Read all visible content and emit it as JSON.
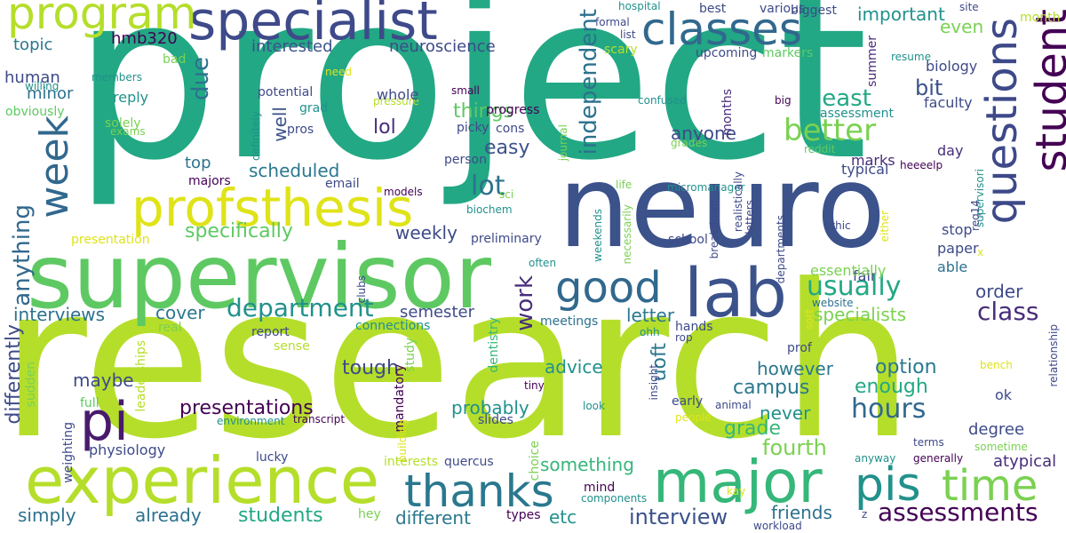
{
  "words": [
    {
      "text": "project",
      "color": "#22a884"
    },
    {
      "text": "research",
      "color": "#b5de2b"
    },
    {
      "text": "neuro",
      "color": "#3b528b"
    },
    {
      "text": "supervisor",
      "color": "#5ec962"
    },
    {
      "text": "experience",
      "color": "#b5de2b"
    },
    {
      "text": "profsthesis",
      "color": "#dfe318"
    },
    {
      "text": "specialist",
      "color": "#3e4a89"
    },
    {
      "text": "program",
      "color": "#b5de2b"
    },
    {
      "text": "classes",
      "color": "#31688e"
    },
    {
      "text": "student",
      "color": "#440154"
    },
    {
      "text": "questions",
      "color": "#3e4989"
    },
    {
      "text": "major",
      "color": "#35b779"
    },
    {
      "text": "lab",
      "color": "#3b528b"
    },
    {
      "text": "good",
      "color": "#31688e"
    },
    {
      "text": "thanks",
      "color": "#2a788e"
    },
    {
      "text": "pis",
      "color": "#21918c"
    },
    {
      "text": "time",
      "color": "#7ad151"
    },
    {
      "text": "pi",
      "color": "#481a6c"
    },
    {
      "text": "week",
      "color": "#31688e"
    },
    {
      "text": "department",
      "color": "#21918c"
    },
    {
      "text": "better",
      "color": "#7ad151"
    },
    {
      "text": "independent",
      "color": "#2c728e"
    },
    {
      "text": "lot",
      "color": "#2c728e"
    },
    {
      "text": "work",
      "color": "#472d7b"
    },
    {
      "text": "usually",
      "color": "#22a884"
    },
    {
      "text": "assessments",
      "color": "#440154"
    },
    {
      "text": "hours",
      "color": "#31688e"
    },
    {
      "text": "class",
      "color": "#472d7b"
    },
    {
      "text": "anything",
      "color": "#31688e"
    },
    {
      "text": "due",
      "color": "#2c728e"
    },
    {
      "text": "well",
      "color": "#3b528b"
    },
    {
      "text": "least",
      "color": "#22a884"
    },
    {
      "text": "interview",
      "color": "#3b528b"
    },
    {
      "text": "fourth",
      "color": "#7ad151"
    },
    {
      "text": "specifically",
      "color": "#5ec962"
    },
    {
      "text": "presentations",
      "color": "#440154"
    },
    {
      "text": "differently",
      "color": "#3e4a89"
    },
    {
      "text": "students",
      "color": "#22a884"
    },
    {
      "text": "interviews",
      "color": "#2c728e"
    },
    {
      "text": "simply",
      "color": "#2c728e"
    },
    {
      "text": "already",
      "color": "#2c728e"
    },
    {
      "text": "different",
      "color": "#2a788e"
    },
    {
      "text": "campus",
      "color": "#2a788e"
    },
    {
      "text": "probably",
      "color": "#21918c"
    },
    {
      "text": "advice",
      "color": "#21918c"
    },
    {
      "text": "something",
      "color": "#35b779"
    },
    {
      "text": "tough",
      "color": "#3e4a89"
    },
    {
      "text": "option",
      "color": "#2a788e"
    },
    {
      "text": "enough",
      "color": "#22a884"
    },
    {
      "text": "specialists",
      "color": "#7ad151"
    },
    {
      "text": "important",
      "color": "#21918c"
    },
    {
      "text": "even",
      "color": "#7ad151"
    },
    {
      "text": "anyone",
      "color": "#3e4a89"
    },
    {
      "text": "easy",
      "color": "#3b528b"
    },
    {
      "text": "things",
      "color": "#5ec962"
    },
    {
      "text": "lol",
      "color": "#472d7b"
    },
    {
      "text": "scheduled",
      "color": "#2a788e"
    },
    {
      "text": "top",
      "color": "#2c728e"
    },
    {
      "text": "cover",
      "color": "#2a788e"
    },
    {
      "text": "weekly",
      "color": "#3e4a89"
    },
    {
      "text": "semester",
      "color": "#3e4a89"
    },
    {
      "text": "maybe",
      "color": "#3e4a89"
    },
    {
      "text": "never",
      "color": "#21918c"
    },
    {
      "text": "however",
      "color": "#2a788e"
    },
    {
      "text": "grade",
      "color": "#35b779"
    },
    {
      "text": "friends",
      "color": "#2c728e"
    },
    {
      "text": "uoft",
      "color": "#2a788e"
    },
    {
      "text": "etc",
      "color": "#21918c"
    },
    {
      "text": "bit",
      "color": "#3b528b"
    },
    {
      "text": "order",
      "color": "#3e4a89"
    },
    {
      "text": "letter",
      "color": "#2a788e"
    },
    {
      "text": "interested",
      "color": "#3b528b"
    },
    {
      "text": "neuroscience",
      "color": "#3e4a89"
    },
    {
      "text": "hmb320",
      "color": "#440154"
    },
    {
      "text": "topic",
      "color": "#2a788e"
    },
    {
      "text": "human",
      "color": "#3e4a89"
    },
    {
      "text": "minor",
      "color": "#2c728e"
    },
    {
      "text": "physiology",
      "color": "#3e4a89"
    },
    {
      "text": "degree",
      "color": "#3e4a89"
    },
    {
      "text": "ok",
      "color": "#3e4a89"
    },
    {
      "text": "atypical",
      "color": "#472d7b"
    },
    {
      "text": "fair",
      "color": "#3e4a89"
    },
    {
      "text": "essentially",
      "color": "#7ad151"
    },
    {
      "text": "paper",
      "color": "#3e4a89"
    },
    {
      "text": "able",
      "color": "#2c728e"
    },
    {
      "text": "stop",
      "color": "#3e4a89"
    },
    {
      "text": "marks",
      "color": "#472d7b"
    },
    {
      "text": "typical",
      "color": "#3e4a89"
    },
    {
      "text": "day",
      "color": "#472d7b"
    },
    {
      "text": "faculty",
      "color": "#3e4a89"
    },
    {
      "text": "biology",
      "color": "#3e4a89"
    },
    {
      "text": "month",
      "color": "#b5de2b"
    },
    {
      "text": "site",
      "color": "#3e4a89"
    },
    {
      "text": "biggest",
      "color": "#3e4a89"
    },
    {
      "text": "various",
      "color": "#3e4a89"
    },
    {
      "text": "best",
      "color": "#3e4a89"
    },
    {
      "text": "hospital",
      "color": "#21918c"
    },
    {
      "text": "formal",
      "color": "#3e4a89"
    },
    {
      "text": "list",
      "color": "#3e4a89"
    },
    {
      "text": "scary",
      "color": "#b5de2b"
    },
    {
      "text": "upcoming",
      "color": "#3e4a89"
    },
    {
      "text": "markers",
      "color": "#5ec962"
    },
    {
      "text": "summer",
      "color": "#472d7b"
    },
    {
      "text": "resume",
      "color": "#21918c"
    },
    {
      "text": "assessment",
      "color": "#21918c"
    },
    {
      "text": "months",
      "color": "#472d7b"
    },
    {
      "text": "big",
      "color": "#440154"
    },
    {
      "text": "prof",
      "color": "#3e4a89"
    },
    {
      "text": "report",
      "color": "#3e4a89"
    },
    {
      "text": "connections",
      "color": "#21918c"
    },
    {
      "text": "mandatory",
      "color": "#440154"
    },
    {
      "text": "study",
      "color": "#7ad151"
    },
    {
      "text": "dentistry",
      "color": "#35b779"
    },
    {
      "text": "meetings",
      "color": "#2c728e"
    },
    {
      "text": "hands",
      "color": "#3e4a89"
    },
    {
      "text": "school",
      "color": "#3e4a89"
    },
    {
      "text": "ethic",
      "color": "#3e4a89"
    },
    {
      "text": "website",
      "color": "#2c728e"
    },
    {
      "text": "reddit",
      "color": "#5ec962"
    },
    {
      "text": "heeeelp",
      "color": "#440154"
    },
    {
      "text": "grades",
      "color": "#7ad151"
    },
    {
      "text": "micromanager",
      "color": "#21918c"
    },
    {
      "text": "req14",
      "color": "#3e4a89"
    },
    {
      "text": "supervisori",
      "color": "#21918c"
    },
    {
      "text": "relationship",
      "color": "#3e4a89"
    },
    {
      "text": "bench",
      "color": "#dfe318"
    },
    {
      "text": "sometime",
      "color": "#7ad151"
    },
    {
      "text": "terms",
      "color": "#3e4a89"
    },
    {
      "text": "generally",
      "color": "#440154"
    },
    {
      "text": "anyway",
      "color": "#21918c"
    },
    {
      "text": "kay",
      "color": "#dfe318"
    },
    {
      "text": "workload",
      "color": "#3e4a89"
    },
    {
      "text": "z",
      "color": "#3e4a89"
    },
    {
      "text": "people",
      "color": "#dfe318"
    },
    {
      "text": "animal",
      "color": "#3e4a89"
    },
    {
      "text": "early",
      "color": "#3e4a89"
    },
    {
      "text": "insight",
      "color": "#3e4a89"
    },
    {
      "text": "ohh",
      "color": "#21918c"
    },
    {
      "text": "rop",
      "color": "#3e4a89"
    },
    {
      "text": "real",
      "color": "#7ad151"
    },
    {
      "text": "sense",
      "color": "#b5de2b"
    },
    {
      "text": "leaderships",
      "color": "#b5de2b"
    },
    {
      "text": "sudden",
      "color": "#7ad151"
    },
    {
      "text": "full",
      "color": "#5ec962"
    },
    {
      "text": "weighting",
      "color": "#3e4a89"
    },
    {
      "text": "lucky",
      "color": "#3e4a89"
    },
    {
      "text": "environment",
      "color": "#21918c"
    },
    {
      "text": "transcript",
      "color": "#440154"
    },
    {
      "text": "building",
      "color": "#dfe318"
    },
    {
      "text": "interests",
      "color": "#b5de2b"
    },
    {
      "text": "quercus",
      "color": "#3e4a89"
    },
    {
      "text": "choice",
      "color": "#7ad151"
    },
    {
      "text": "tiny",
      "color": "#440154"
    },
    {
      "text": "look",
      "color": "#21918c"
    },
    {
      "text": "slides",
      "color": "#3e4a89"
    },
    {
      "text": "mind",
      "color": "#440154"
    },
    {
      "text": "components",
      "color": "#21918c"
    },
    {
      "text": "types",
      "color": "#440154"
    },
    {
      "text": "hey",
      "color": "#7ad151"
    },
    {
      "text": "presentation",
      "color": "#dfe318"
    },
    {
      "text": "majors",
      "color": "#440154"
    },
    {
      "text": "email",
      "color": "#3e4a89"
    },
    {
      "text": "biochem",
      "color": "#21918c"
    },
    {
      "text": "sci",
      "color": "#7ad151"
    },
    {
      "text": "person",
      "color": "#3e4a89"
    },
    {
      "text": "models",
      "color": "#440154"
    },
    {
      "text": "journal",
      "color": "#7ad151"
    },
    {
      "text": "pressure",
      "color": "#b5de2b"
    },
    {
      "text": "whole",
      "color": "#3e4a89"
    },
    {
      "text": "progress",
      "color": "#440154"
    },
    {
      "text": "small",
      "color": "#440154"
    },
    {
      "text": "need",
      "color": "#dfe318"
    },
    {
      "text": "potential",
      "color": "#3e4a89"
    },
    {
      "text": "grad",
      "color": "#21918c"
    },
    {
      "text": "pros",
      "color": "#3e4a89"
    },
    {
      "text": "definitely",
      "color": "#21918c"
    },
    {
      "text": "picky",
      "color": "#3e4a89"
    },
    {
      "text": "cons",
      "color": "#3e4a89"
    },
    {
      "text": "confused",
      "color": "#21918c"
    },
    {
      "text": "reply",
      "color": "#21918c"
    },
    {
      "text": "solely",
      "color": "#7ad151"
    },
    {
      "text": "exams",
      "color": "#7ad151"
    },
    {
      "text": "obviously",
      "color": "#5ec962"
    },
    {
      "text": "willing",
      "color": "#21918c"
    },
    {
      "text": "members",
      "color": "#21918c"
    },
    {
      "text": "bad",
      "color": "#7ad151"
    },
    {
      "text": "life",
      "color": "#7ad151"
    },
    {
      "text": "weekends",
      "color": "#21918c"
    },
    {
      "text": "necessarily",
      "color": "#7ad151"
    },
    {
      "text": "often",
      "color": "#21918c"
    },
    {
      "text": "clubs",
      "color": "#3e4a89"
    },
    {
      "text": "preliminary",
      "color": "#3e4a89"
    },
    {
      "text": "realistically",
      "color": "#3e4a89"
    },
    {
      "text": "letters",
      "color": "#3e4a89"
    },
    {
      "text": "breakdown",
      "color": "#3e4a89"
    },
    {
      "text": "departments",
      "color": "#3e4a89"
    },
    {
      "text": "either",
      "color": "#dfe318"
    },
    {
      "text": "x",
      "color": "#dfe318"
    },
    {
      "text": "sort",
      "color": "#dfe318"
    }
  ]
}
